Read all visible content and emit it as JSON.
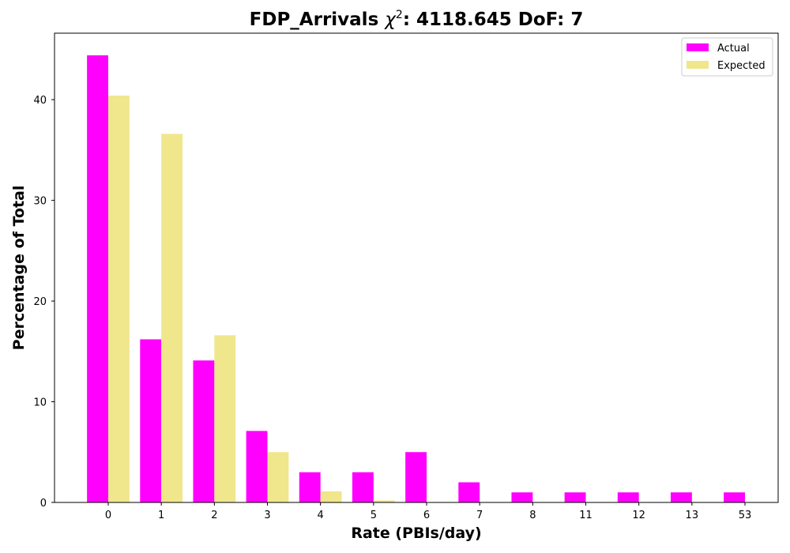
{
  "chart_data": {
    "type": "bar",
    "title_main": "FDP_Arrivals ",
    "title_chi_symbol": "χ",
    "title_chi_exponent": "2",
    "title_stat": ": 4118.645 DoF: 7",
    "xlabel": "Rate (PBIs/day)",
    "ylabel": "Percentage of Total",
    "categories": [
      "0",
      "1",
      "2",
      "3",
      "4",
      "5",
      "6",
      "7",
      "8",
      "11",
      "12",
      "13",
      "53"
    ],
    "series": [
      {
        "name": "Actual",
        "color": "#ff00ff",
        "values": [
          44.4,
          16.2,
          14.1,
          7.1,
          3.0,
          3.0,
          5.0,
          2.0,
          1.0,
          1.0,
          1.0,
          1.0,
          1.0
        ]
      },
      {
        "name": "Expected",
        "color": "#f0e68c",
        "values": [
          40.4,
          36.6,
          16.6,
          5.0,
          1.1,
          0.2,
          0.03,
          0.0,
          0.0,
          0.0,
          0.0,
          0.0,
          0.0
        ]
      }
    ],
    "yticks": [
      0,
      10,
      20,
      30,
      40
    ],
    "ylim": [
      0,
      46.6
    ],
    "legend_position": "top-right",
    "grid": false
  }
}
